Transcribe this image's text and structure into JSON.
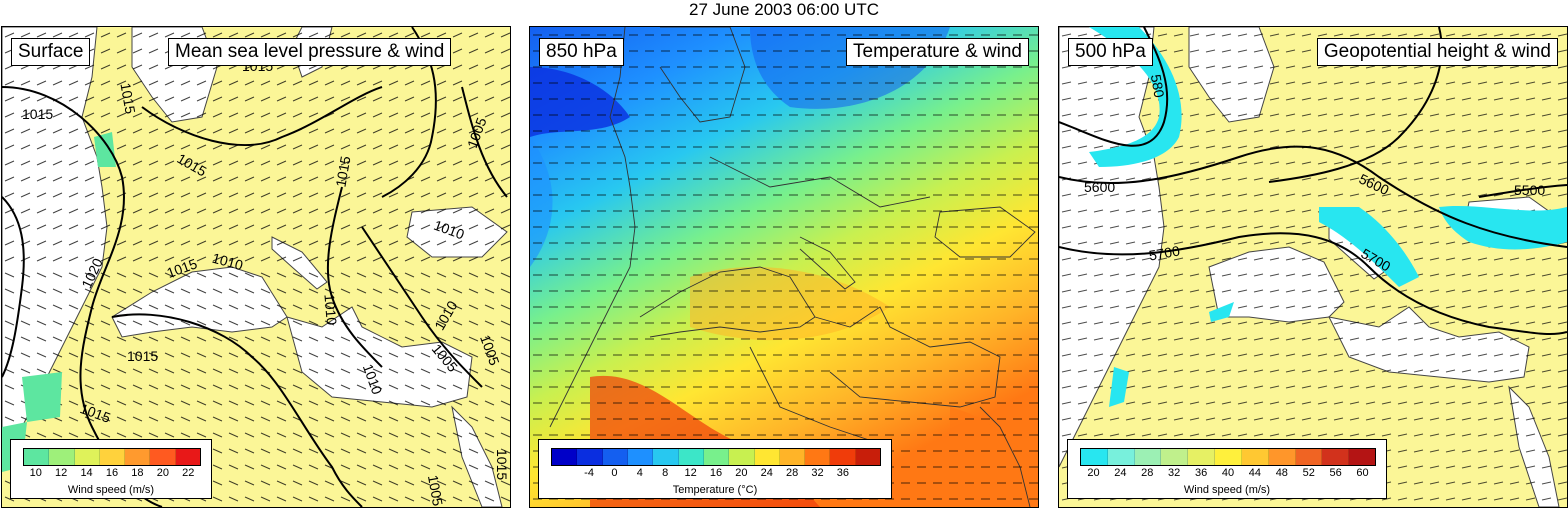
{
  "title": "27 June 2003 06:00 UTC",
  "panels": [
    {
      "level_label": "Surface",
      "field_label": "Mean sea level pressure & wind",
      "colorbar": {
        "ticks": [
          "10",
          "12",
          "14",
          "16",
          "18",
          "20",
          "22"
        ],
        "colors": [
          "#5de6a0",
          "#9ef07a",
          "#dff25a",
          "#ffd23c",
          "#ff9a2e",
          "#ff5a20",
          "#e81818"
        ],
        "title": "Wind speed (m/s)"
      },
      "contour_labels": [
        "1015",
        "1015",
        "1015",
        "1005",
        "1015",
        "1010",
        "1015",
        "1010",
        "1020",
        "1015",
        "1010",
        "1010",
        "1005",
        "1005",
        "1015",
        "1010",
        "1015",
        "1005",
        "1015"
      ]
    },
    {
      "level_label": "850 hPa",
      "field_label": "Temperature & wind",
      "colorbar": {
        "ticks": [
          "-4",
          "0",
          "4",
          "8",
          "12",
          "16",
          "20",
          "24",
          "28",
          "32",
          "36"
        ],
        "colors": [
          "#0000c8",
          "#0a2ee0",
          "#145ff0",
          "#1e90ff",
          "#28c8f0",
          "#3ce6c8",
          "#78f08c",
          "#c8f050",
          "#ffe632",
          "#ffb428",
          "#ff7814",
          "#f03c0a",
          "#c81e0a"
        ],
        "title": "Temperature (°C)"
      }
    },
    {
      "level_label": "500 hPa",
      "field_label": "Geopotential height & wind",
      "colorbar": {
        "ticks": [
          "20",
          "24",
          "28",
          "32",
          "36",
          "40",
          "44",
          "48",
          "52",
          "56",
          "60"
        ],
        "colors": [
          "#28e6f0",
          "#78f0dc",
          "#9cf0b4",
          "#c0f08c",
          "#e6f064",
          "#fff03c",
          "#ffc832",
          "#ff962a",
          "#f06423",
          "#d2321c",
          "#b41414"
        ],
        "title": "Wind speed (m/s)"
      },
      "contour_labels": [
        "580",
        "5600",
        "5600",
        "5500",
        "5700",
        "5700"
      ]
    }
  ],
  "colors": {
    "land": "#fbf697",
    "sea": "#ffffff",
    "coast": "#444444",
    "contour": "#000000"
  }
}
